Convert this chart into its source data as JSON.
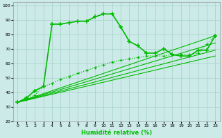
{
  "xlabel": "Humidité relative (%)",
  "xlim": [
    -0.5,
    23.5
  ],
  "ylim": [
    20,
    102
  ],
  "xticks": [
    0,
    1,
    2,
    3,
    4,
    5,
    6,
    7,
    8,
    9,
    10,
    11,
    12,
    13,
    14,
    15,
    16,
    17,
    18,
    19,
    20,
    21,
    22,
    23
  ],
  "yticks": [
    20,
    30,
    40,
    50,
    60,
    70,
    80,
    90,
    100
  ],
  "bg_color": "#cceae7",
  "grid_color": "#aad4cc",
  "line_color": "#00bb00",
  "line1_x": [
    0,
    1,
    2,
    3,
    4,
    5,
    6,
    7,
    8,
    9,
    10,
    11,
    12,
    13,
    14,
    15,
    16,
    17,
    18,
    19,
    20,
    21,
    22,
    23
  ],
  "line1_y": [
    33,
    36,
    41,
    44,
    87,
    87,
    88,
    89,
    89,
    92,
    94,
    94,
    85,
    75,
    72,
    67,
    67,
    70,
    66,
    65,
    65,
    69,
    69,
    79
  ],
  "line2_x": [
    0,
    1,
    2,
    3,
    4,
    5,
    6,
    7,
    8,
    9,
    10,
    11,
    12,
    13,
    14,
    15,
    16,
    17,
    18,
    19,
    20,
    21,
    22,
    23
  ],
  "line2_y": [
    33,
    35,
    38,
    44,
    46,
    49,
    51,
    53,
    55,
    57,
    59,
    61,
    62,
    63,
    64,
    65,
    65,
    65,
    66,
    66,
    66,
    67,
    73,
    79
  ],
  "line3_x": [
    0,
    23
  ],
  "line3_y": [
    33,
    65
  ],
  "line4_x": [
    0,
    23
  ],
  "line4_y": [
    33,
    69
  ],
  "line5_x": [
    0,
    23
  ],
  "line5_y": [
    33,
    74
  ],
  "line6_x": [
    0,
    23
  ],
  "line6_y": [
    33,
    79
  ]
}
